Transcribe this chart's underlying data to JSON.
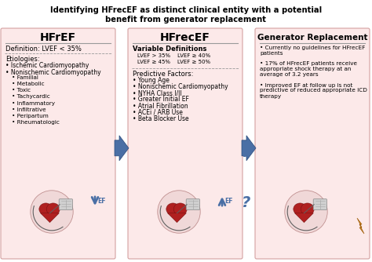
{
  "title_line1": "Identifying HFrecEF as distinct clinical entity with a potential",
  "title_line2": "benefit from generator replacement",
  "panel1_header": "HFrEF",
  "panel2_header": "HFrecEF",
  "panel3_header": "Generator Replacement",
  "panel_bg": "#fce9e9",
  "panel_border": "#d4a0a0",
  "panel1_text": [
    [
      "Definition: LVEF < 35%",
      false,
      6.0,
      0
    ],
    [
      "dashed",
      false,
      0,
      0
    ],
    [
      "Etiologies:",
      false,
      6.0,
      0
    ],
    [
      "• Ischemic Cardiomyopathy",
      false,
      5.5,
      0
    ],
    [
      "• Nonischemic Cardiomyopathy",
      false,
      5.5,
      0
    ],
    [
      "• Familial",
      false,
      5.2,
      8
    ],
    [
      "• Metabolic",
      false,
      5.2,
      8
    ],
    [
      "• Toxic",
      false,
      5.2,
      8
    ],
    [
      "• Tachycardic",
      false,
      5.2,
      8
    ],
    [
      "• Inflammatory",
      false,
      5.2,
      8
    ],
    [
      "• Infiltrative",
      false,
      5.2,
      8
    ],
    [
      "• Peripartum",
      false,
      5.2,
      8
    ],
    [
      "• Rheumatologic",
      false,
      5.2,
      8
    ]
  ],
  "panel2_text": [
    [
      "Variable Definitions",
      true,
      6.0,
      0
    ],
    [
      "dashed_half",
      false,
      0,
      0
    ],
    [
      "LVEF > 35%    LVEF ≥ 40%",
      false,
      5.0,
      6
    ],
    [
      "LVEF ≥ 45%    LVEF ≥ 50%",
      false,
      5.0,
      6
    ],
    [
      "dashed",
      false,
      0,
      0
    ],
    [
      "Predictive Factors:",
      false,
      6.0,
      0
    ],
    [
      "• Young Age",
      false,
      5.5,
      0
    ],
    [
      "• Nonischemic Cardiomyopathy",
      false,
      5.5,
      0
    ],
    [
      "• NYHA Class I/II",
      false,
      5.5,
      0
    ],
    [
      "• Greater Initial EF",
      false,
      5.5,
      0
    ],
    [
      "• Atrial Fibrillation",
      false,
      5.5,
      0
    ],
    [
      "• ACEi / ARB Use",
      false,
      5.5,
      0
    ],
    [
      "• Beta Blocker Use",
      false,
      5.5,
      0
    ]
  ],
  "panel3_text": [
    [
      "• Currently no guidelines for HFrecEF patients",
      false,
      5.2,
      0
    ],
    [
      "",
      false,
      0,
      0
    ],
    [
      "• 17% of HFrecEF patients receive appropriate shock therapy at an average of 3.2 years",
      false,
      5.2,
      0
    ],
    [
      "",
      false,
      0,
      0
    ],
    [
      "• Improved EF at follow up is not predictive of reduced appropriate ICD therapy",
      false,
      5.2,
      0
    ]
  ],
  "arrow_color": "#4a6fa5",
  "arrow_dark": "#2a4a7a",
  "ef_color": "#4a6fa5",
  "question_color": "#4a6fa5",
  "lightning_color": "#d4881a",
  "heart_color": "#b02020",
  "heart_dark": "#7a1010",
  "heart_light": "#e8c0c0",
  "device_color": "#d0d0d0",
  "wire_color": "#606060"
}
